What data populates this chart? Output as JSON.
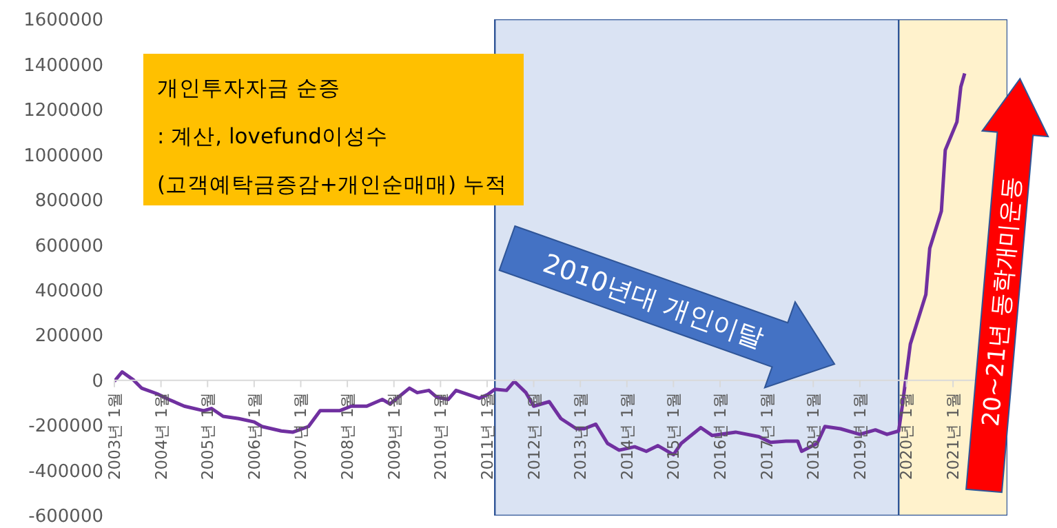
{
  "chart_data": {
    "type": "line",
    "annotations": [
      "개인투자자금 순증",
      ": 계산, lovefund이성수",
      "(고객예탁금증감+개인순매매) 누적",
      "2010년대 개인이탈",
      "20~21년 동학개미운동"
    ],
    "x": [
      "2003-01",
      "2003-03",
      "2003-06",
      "2003-08",
      "2003-12",
      "2004-03",
      "2004-07",
      "2004-12",
      "2005-02",
      "2005-05",
      "2005-09",
      "2006-01",
      "2006-03",
      "2006-08",
      "2006-11",
      "2007-03",
      "2007-06",
      "2007-11",
      "2008-02",
      "2008-06",
      "2008-10",
      "2008-12",
      "2009-05",
      "2009-07",
      "2009-10",
      "2009-12",
      "2010-03",
      "2010-05",
      "2010-11",
      "2011-01",
      "2011-03",
      "2011-06",
      "2011-08",
      "2011-11",
      "2012-01",
      "2012-05",
      "2012-08",
      "2012-12",
      "2013-02",
      "2013-05",
      "2013-08",
      "2013-11",
      "2014-03",
      "2014-06",
      "2014-09",
      "2014-12",
      "2015-01",
      "2015-03",
      "2015-08",
      "2015-11",
      "2016-05",
      "2016-11",
      "2017-02",
      "2017-06",
      "2017-09",
      "2017-10",
      "2018-02",
      "2018-04",
      "2018-08",
      "2019-01",
      "2019-05",
      "2019-08",
      "2019-11",
      "2019-12",
      "2020-02",
      "2020-06",
      "2020-07",
      "2020-10",
      "2020-11",
      "2021-02",
      "2021-03",
      "2021-04"
    ],
    "series": [
      {
        "color": "#7030a0",
        "values": [
          -5000,
          37000,
          0,
          -35000,
          -60000,
          -85000,
          -115000,
          -135000,
          -125000,
          -160000,
          -170000,
          -185000,
          -205000,
          -225000,
          -230000,
          -205000,
          -135000,
          -135000,
          -115000,
          -115000,
          -85000,
          -105000,
          -35000,
          -55000,
          -45000,
          -75000,
          -85000,
          -45000,
          -80000,
          -65000,
          -40000,
          -45000,
          -5000,
          -55000,
          -115000,
          -95000,
          -170000,
          -215000,
          -215000,
          -195000,
          -280000,
          -310000,
          -295000,
          -315000,
          -290000,
          -320000,
          -330000,
          -280000,
          -210000,
          -245000,
          -230000,
          -250000,
          -275000,
          -270000,
          -270000,
          -315000,
          -280000,
          -205000,
          -215000,
          -240000,
          -220000,
          -240000,
          -225000,
          -105000,
          160000,
          380000,
          585000,
          750000,
          1020000,
          1145000,
          1300000,
          1360000
        ]
      }
    ],
    "xlim": [
      "2003-01",
      "2022-03"
    ],
    "xticks": [
      {
        "value": "2003-01",
        "label": "2003년 1월"
      },
      {
        "value": "2004-01",
        "label": "2004년 1월"
      },
      {
        "value": "2005-01",
        "label": "2005년 1월"
      },
      {
        "value": "2006-01",
        "label": "2006년 1월"
      },
      {
        "value": "2007-01",
        "label": "2007년 1월"
      },
      {
        "value": "2008-01",
        "label": "2008년 1월"
      },
      {
        "value": "2009-01",
        "label": "2009년 1월"
      },
      {
        "value": "2010-01",
        "label": "2010년 1월"
      },
      {
        "value": "2011-01",
        "label": "2011년 1월"
      },
      {
        "value": "2012-01",
        "label": "2012년 1월"
      },
      {
        "value": "2013-01",
        "label": "2013년 1월"
      },
      {
        "value": "2014-01",
        "label": "2014년 1월"
      },
      {
        "value": "2015-01",
        "label": "2015년 1월"
      },
      {
        "value": "2016-01",
        "label": "2016년 1월"
      },
      {
        "value": "2017-01",
        "label": "2017년 1월"
      },
      {
        "value": "2018-01",
        "label": "2018년 1월"
      },
      {
        "value": "2019-01",
        "label": "2019년 1월"
      },
      {
        "value": "2020-01",
        "label": "2020년 1월"
      },
      {
        "value": "2021-01",
        "label": "2021년 1월"
      }
    ],
    "ylim": [
      -600000,
      1600000
    ],
    "yticks": [
      -600000,
      -400000,
      -200000,
      0,
      200000,
      400000,
      600000,
      800000,
      1000000,
      1200000,
      1400000,
      1600000
    ],
    "bands": [
      {
        "axis": "x",
        "from": "2011-03",
        "to": "2019-11",
        "color": "#dae3f3"
      },
      {
        "axis": "x",
        "from": "2019-11",
        "to": "2022-03",
        "color": "#fff2cc"
      }
    ],
    "grid": false,
    "legend": false,
    "marker": "none",
    "line_style": "solid"
  }
}
